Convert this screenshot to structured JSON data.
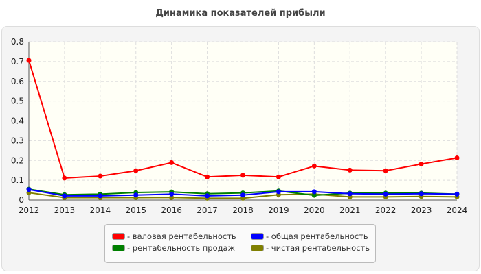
{
  "chart_data": {
    "type": "line",
    "title": "Динамика показателей прибыли",
    "x": [
      "2012",
      "2013",
      "2014",
      "2015",
      "2016",
      "2017",
      "2018",
      "2019",
      "2020",
      "2021",
      "2022",
      "2023",
      "2024"
    ],
    "ylim": [
      0,
      0.8
    ],
    "yticks": [
      "0",
      "0.1",
      "0.2",
      "0.3",
      "0.4",
      "0.5",
      "0.6",
      "0.7",
      "0.8"
    ],
    "grid": true,
    "legend_position": "bottom",
    "series": [
      {
        "name": "- валовая рентабельность",
        "color": "#ff0000",
        "values": [
          0.706,
          0.111,
          0.121,
          0.148,
          0.189,
          0.117,
          0.125,
          0.117,
          0.172,
          0.151,
          0.148,
          0.182,
          0.213
        ]
      },
      {
        "name": "- общая рентабельность",
        "color": "#0000ff",
        "values": [
          0.053,
          0.021,
          0.021,
          0.025,
          0.03,
          0.021,
          0.025,
          0.042,
          0.042,
          0.032,
          0.03,
          0.032,
          0.03
        ]
      },
      {
        "name": "- рентабельность продаж",
        "color": "#008000",
        "values": [
          0.055,
          0.027,
          0.03,
          0.038,
          0.041,
          0.032,
          0.036,
          0.046,
          0.024,
          0.035,
          0.035,
          0.035,
          0.03
        ]
      },
      {
        "name": "- чистая рентабельность",
        "color": "#808000",
        "values": [
          0.037,
          0.012,
          0.012,
          0.012,
          0.013,
          0.009,
          0.009,
          0.027,
          0.03,
          0.016,
          0.016,
          0.018,
          0.016
        ]
      }
    ]
  }
}
